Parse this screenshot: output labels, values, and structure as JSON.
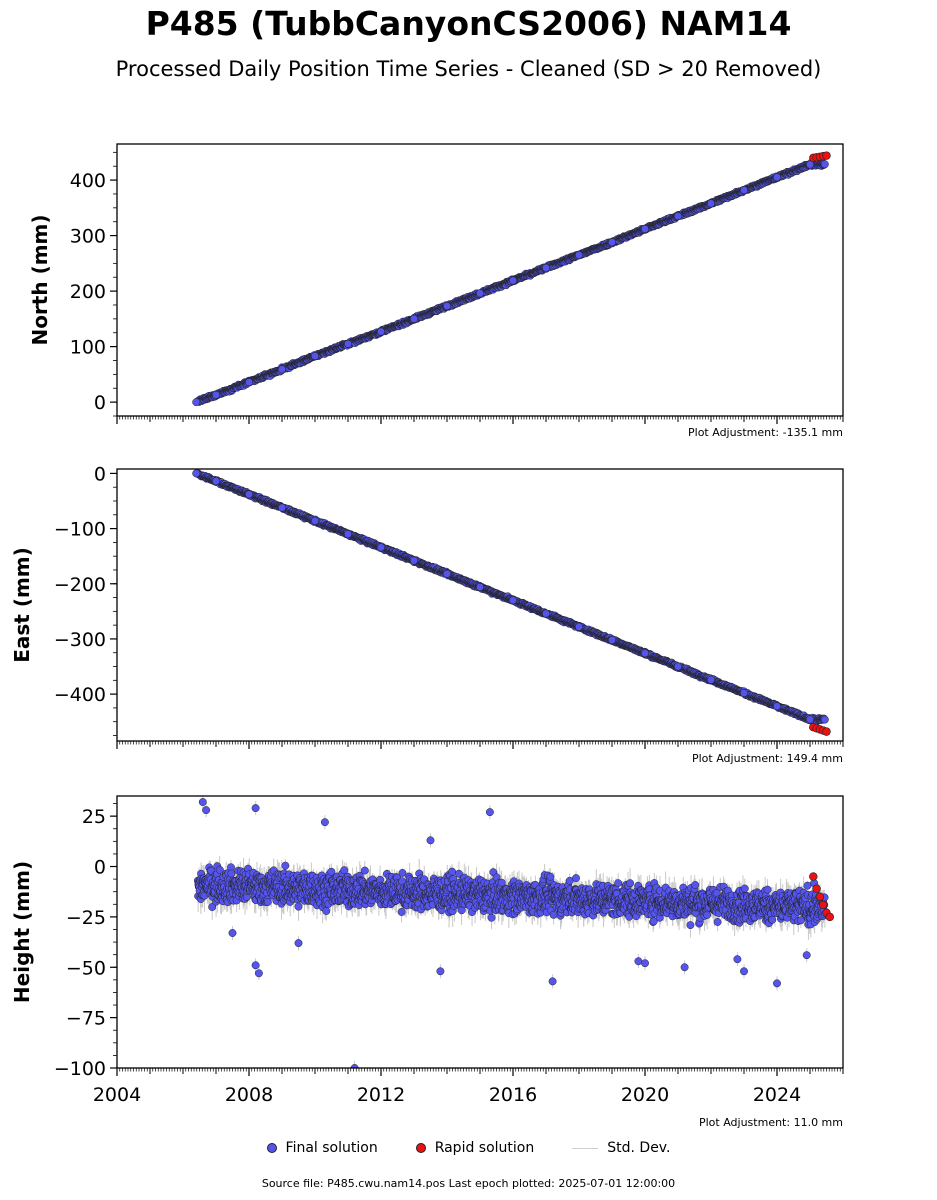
{
  "header": {
    "title": "P485 (TubbCanyonCS2006) NAM14",
    "subtitle": "Processed Daily Position Time Series - Cleaned (SD > 20 Removed)"
  },
  "colors": {
    "final_fill": "#5555ee",
    "final_edge": "#222222",
    "rapid_fill": "#ee1111",
    "stddev": "#c8c8c8",
    "axis": "#000000"
  },
  "legend": {
    "final": "Final solution",
    "rapid": "Rapid solution",
    "stddev": "Std. Dev."
  },
  "footer": {
    "source": "Source file: P485.cwu.nam14.pos  Last epoch plotted: 2025-07-01 12:00:00"
  },
  "chart_data": [
    {
      "type": "scatter",
      "ylabel": "North (mm)",
      "adjustment": "Plot Adjustment: -135.1 mm",
      "xlim": [
        2004,
        2026
      ],
      "ylim": [
        -25,
        465
      ],
      "yticks": [
        0,
        100,
        200,
        300,
        400
      ],
      "yticklabels": [
        "0",
        "100",
        "200",
        "300",
        "400"
      ],
      "xticklabels": [],
      "series": [
        {
          "name": "Final solution",
          "x": [
            2006.4,
            2007.0,
            2008.0,
            2009.0,
            2010.0,
            2011.0,
            2012.0,
            2013.0,
            2014.0,
            2015.0,
            2016.0,
            2017.0,
            2018.0,
            2019.0,
            2020.0,
            2021.0,
            2022.0,
            2023.0,
            2024.0,
            2025.0
          ],
          "y": [
            0,
            13,
            36,
            59,
            83,
            105,
            127,
            150,
            173,
            196,
            219,
            242,
            265,
            288,
            312,
            335,
            358,
            382,
            405,
            428
          ]
        },
        {
          "name": "Rapid solution",
          "x": [
            2025.1,
            2025.2,
            2025.3,
            2025.4,
            2025.5
          ],
          "y": [
            440,
            441,
            442,
            443,
            444
          ]
        }
      ]
    },
    {
      "type": "scatter",
      "ylabel": "East (mm)",
      "adjustment": "Plot Adjustment: 149.4 mm",
      "xlim": [
        2004,
        2026
      ],
      "ylim": [
        -485,
        8
      ],
      "yticks": [
        0,
        -100,
        -200,
        -300,
        -400
      ],
      "yticklabels": [
        "0",
        "−100",
        "−200",
        "−300",
        "−400"
      ],
      "xticklabels": [],
      "series": [
        {
          "name": "Final solution",
          "x": [
            2006.4,
            2007.0,
            2008.0,
            2009.0,
            2010.0,
            2011.0,
            2012.0,
            2013.0,
            2014.0,
            2015.0,
            2016.0,
            2017.0,
            2018.0,
            2019.0,
            2020.0,
            2021.0,
            2022.0,
            2023.0,
            2024.0,
            2025.0
          ],
          "y": [
            0,
            -14,
            -38,
            -62,
            -86,
            -110,
            -134,
            -158,
            -182,
            -206,
            -230,
            -254,
            -278,
            -302,
            -326,
            -350,
            -374,
            -398,
            -422,
            -446
          ]
        },
        {
          "name": "Rapid solution",
          "x": [
            2025.1,
            2025.2,
            2025.3,
            2025.4,
            2025.5
          ],
          "y": [
            -460,
            -462,
            -464,
            -466,
            -468
          ]
        }
      ]
    },
    {
      "type": "scatter",
      "ylabel": "Height (mm)",
      "adjustment": "Plot Adjustment: 11.0 mm",
      "xlim": [
        2004,
        2026
      ],
      "ylim": [
        -100,
        35
      ],
      "yticks": [
        25,
        0,
        -25,
        -50,
        -75,
        -100
      ],
      "yticklabels": [
        "25",
        "0",
        "−25",
        "−50",
        "−75",
        "−100"
      ],
      "xticks": [
        2004,
        2008,
        2012,
        2016,
        2020,
        2024
      ],
      "xticklabels": [
        "2004",
        "2008",
        "2012",
        "2016",
        "2020",
        "2024"
      ],
      "series": [
        {
          "name": "Final solution",
          "x": [
            2006.6,
            2006.7,
            2008.2,
            2008.3,
            2008.2,
            2011.2,
            2013.8,
            2015.3,
            2017.2,
            2019.8,
            2020.0,
            2021.2,
            2023.0,
            2024.0,
            2024.9,
            2007.5,
            2009.5,
            2010.3,
            2013.5,
            2022.8
          ],
          "y": [
            32,
            28,
            -49,
            -53,
            29,
            -100,
            -52,
            27,
            -57,
            -47,
            -48,
            -50,
            -52,
            -58,
            -44,
            -33,
            -38,
            22,
            13,
            -46
          ]
        },
        {
          "name": "Rapid solution",
          "x": [
            2025.1,
            2025.2,
            2025.3,
            2025.4,
            2025.5,
            2025.6
          ],
          "y": [
            -5,
            -11,
            -15,
            -19,
            -23,
            -25
          ]
        }
      ]
    }
  ]
}
